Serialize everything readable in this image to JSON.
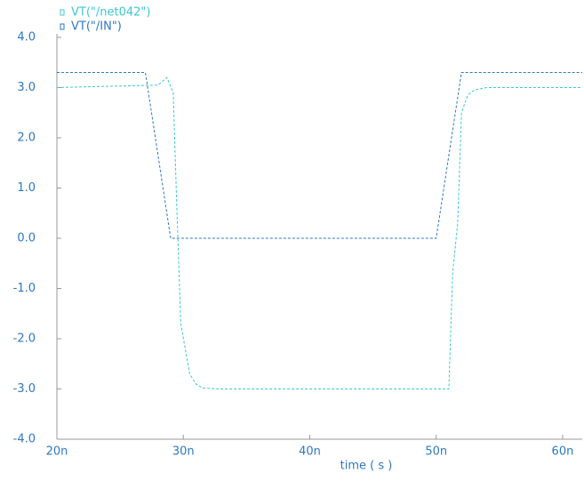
{
  "chart_data": {
    "type": "line",
    "x_label": "time ( s )",
    "series": [
      {
        "name": "VT(\"/net042\")",
        "color": "#3cc8d0",
        "x": [
          2e-08,
          2.8e-08,
          2.87e-08,
          2.92e-08,
          2.95e-08,
          2.98e-08,
          3.05e-08,
          3.1e-08,
          3.15e-08,
          3.3e-08,
          5.1e-08,
          5.13e-08,
          5.17e-08,
          5.2e-08,
          5.25e-08,
          5.3e-08,
          5.4e-08,
          6.155e-08
        ],
        "values": [
          3.0,
          3.05,
          3.2,
          2.9,
          0.5,
          -1.7,
          -2.7,
          -2.9,
          -2.98,
          -3.0,
          -3.0,
          -0.7,
          0.3,
          2.5,
          2.85,
          2.95,
          3.0,
          3.0
        ]
      },
      {
        "name": "VT(\"/IN\")",
        "color": "#2e78c0",
        "x": [
          2e-08,
          2.7e-08,
          2.9e-08,
          5e-08,
          5.2e-08,
          6.155e-08
        ],
        "values": [
          3.3,
          3.3,
          0.0,
          0.0,
          3.3,
          3.3
        ]
      }
    ],
    "xlim": [
      2e-08,
      6.155e-08
    ],
    "xticks": [
      {
        "value": 2e-08,
        "label": "20n"
      },
      {
        "value": 3e-08,
        "label": "30n"
      },
      {
        "value": 4e-08,
        "label": "40n"
      },
      {
        "value": 5e-08,
        "label": "50n"
      },
      {
        "value": 6e-08,
        "label": "60n"
      }
    ],
    "ylim": [
      -4.0,
      4.0
    ],
    "yticks": [
      {
        "value": -4,
        "label": "-4.0"
      },
      {
        "value": -3,
        "label": "-3.0"
      },
      {
        "value": -2,
        "label": "-2.0"
      },
      {
        "value": -1,
        "label": "-1.0"
      },
      {
        "value": 0,
        "label": "0.0"
      },
      {
        "value": 1,
        "label": "1.0"
      },
      {
        "value": 2,
        "label": "2.0"
      },
      {
        "value": 3,
        "label": "3.0"
      },
      {
        "value": 4,
        "label": "4.0"
      }
    ]
  }
}
